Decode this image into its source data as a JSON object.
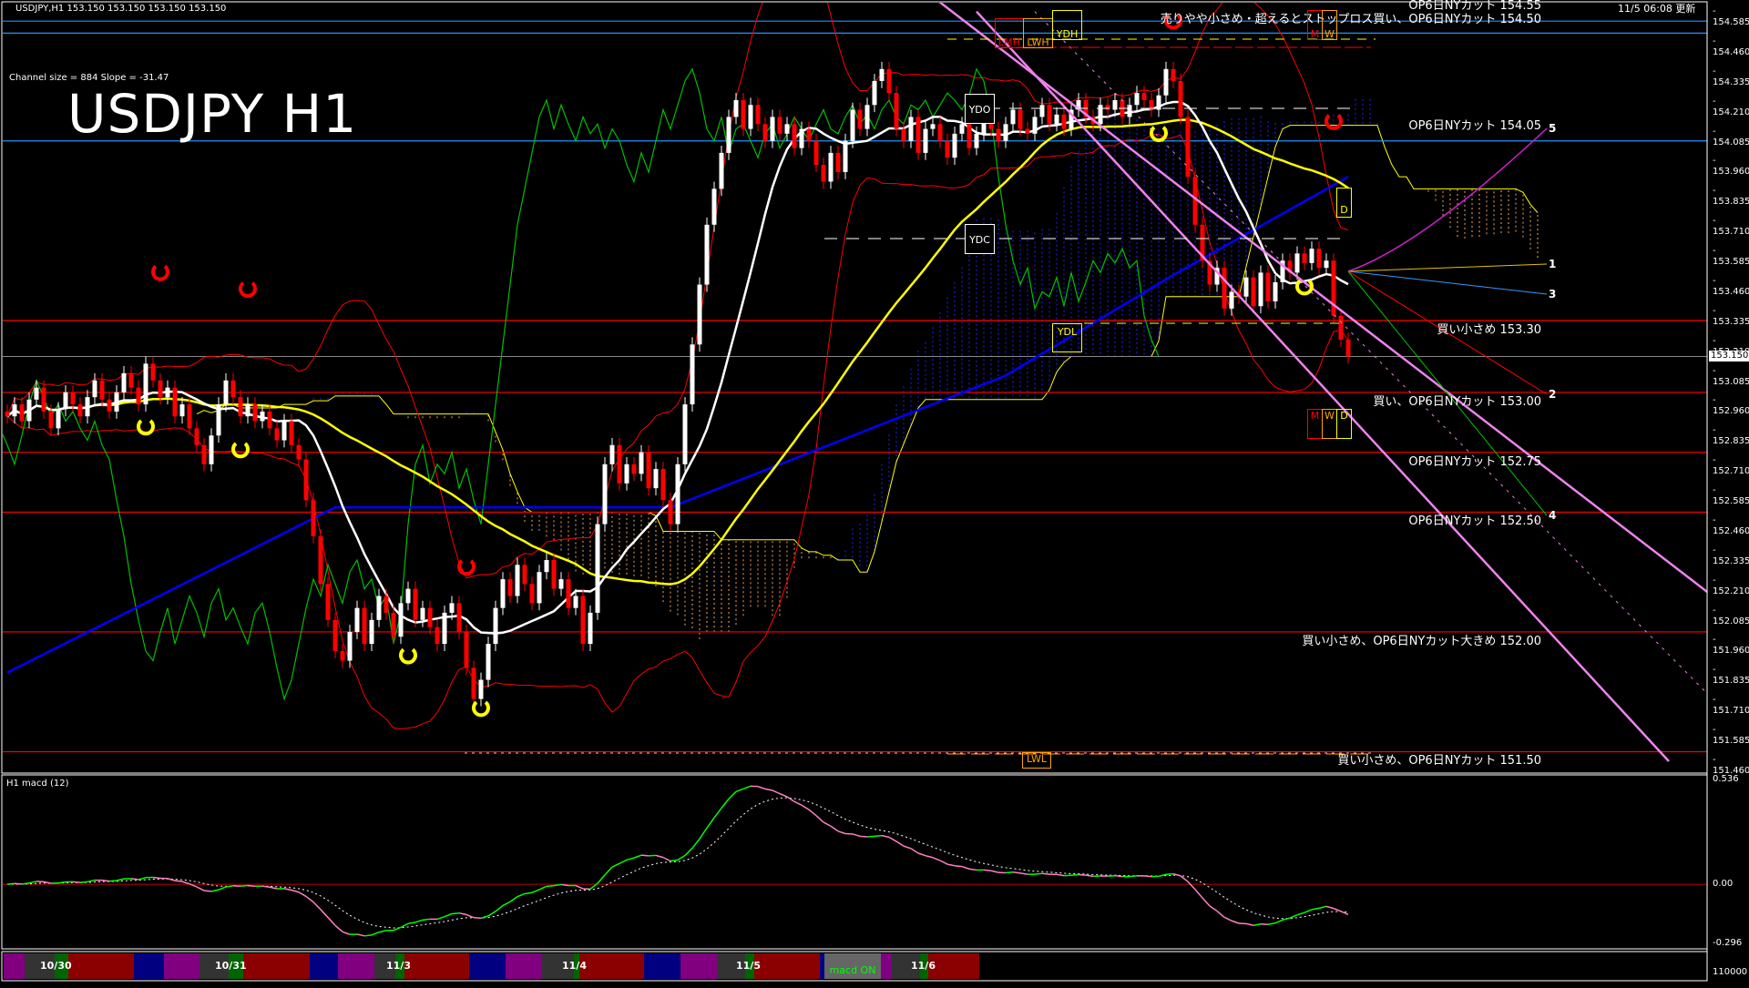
{
  "header": {
    "symbol_line": "USDJPY,H1  153.150 153.150 153.150 153.150",
    "updated": "11/5 06:08 更新",
    "channel_info": "Channel size = 884 Slope = -31.47",
    "title": "USDJPY H1"
  },
  "chart_data": {
    "type": "candlestick",
    "symbol": "USDJPY",
    "timeframe": "H1",
    "ylim": [
      151.46,
      154.585
    ],
    "y_ticks": [
      "154.585",
      "154.460",
      "154.335",
      "154.210",
      "154.085",
      "153.960",
      "153.835",
      "153.710",
      "153.585",
      "153.460",
      "153.335",
      "153.210",
      "153.085",
      "152.960",
      "152.835",
      "152.710",
      "152.585",
      "152.460",
      "152.335",
      "152.210",
      "152.085",
      "151.960",
      "151.835",
      "151.710",
      "151.585",
      "151.460"
    ],
    "current_price": "153.150",
    "current_price_value": 153.15,
    "closes": [
      152.9,
      152.95,
      152.88,
      152.97,
      153.02,
      152.92,
      152.85,
      152.93,
      153.0,
      152.95,
      152.9,
      152.98,
      153.05,
      152.97,
      152.92,
      153.0,
      153.08,
      153.02,
      152.95,
      153.12,
      153.05,
      152.98,
      153.02,
      152.9,
      152.95,
      152.85,
      152.78,
      152.7,
      152.82,
      152.95,
      153.05,
      152.98,
      152.9,
      152.95,
      152.88,
      152.92,
      152.85,
      152.8,
      152.88,
      152.78,
      152.72,
      152.55,
      152.4,
      152.2,
      152.05,
      151.92,
      151.88,
      152.0,
      152.1,
      151.95,
      152.05,
      152.15,
      152.08,
      151.98,
      152.12,
      152.18,
      152.05,
      152.1,
      152.02,
      151.95,
      152.08,
      152.12,
      152.0,
      151.85,
      151.72,
      151.8,
      151.95,
      152.1,
      152.22,
      152.15,
      152.28,
      152.2,
      152.12,
      152.25,
      152.3,
      152.18,
      152.22,
      152.1,
      152.15,
      151.95,
      152.08,
      152.45,
      152.7,
      152.78,
      152.62,
      152.7,
      152.66,
      152.75,
      152.6,
      152.68,
      152.55,
      152.45,
      152.7,
      152.95,
      153.2,
      153.45,
      153.7,
      153.85,
      154.0,
      154.15,
      154.22,
      154.1,
      154.2,
      154.12,
      154.05,
      154.15,
      154.08,
      154.12,
      154.02,
      154.1,
      154.05,
      153.95,
      153.88,
      154.0,
      153.92,
      154.05,
      154.18,
      154.1,
      154.2,
      154.3,
      154.35,
      154.25,
      154.1,
      154.05,
      154.15,
      154.0,
      154.1,
      154.12,
      154.05,
      153.98,
      154.08,
      154.12,
      154.02,
      154.08,
      154.15,
      154.1,
      154.05,
      154.12,
      154.18,
      154.1,
      154.08,
      154.15,
      154.2,
      154.12,
      154.16,
      154.1,
      154.18,
      154.22,
      154.15,
      154.12,
      154.2,
      154.18,
      154.22,
      154.15,
      154.2,
      154.25,
      154.22,
      154.18,
      154.24,
      154.35,
      154.3,
      154.15,
      153.9,
      153.7,
      153.55,
      153.45,
      153.52,
      153.35,
      153.42,
      153.4,
      153.48,
      153.36,
      153.5,
      153.38,
      153.46,
      153.55,
      153.5,
      153.58,
      153.54,
      153.6,
      153.52,
      153.55,
      153.32,
      153.22,
      153.15
    ],
    "ma_slow": [
      [
        0,
        151.83
      ],
      [
        45,
        152.52
      ],
      [
        91,
        152.52
      ],
      [
        137,
        153.07
      ],
      [
        160,
        153.49
      ],
      [
        184,
        153.9
      ]
    ],
    "levels": [
      {
        "price": 154.55,
        "color": "#1e90ff",
        "label": "OP6日NYカット 154.55"
      },
      {
        "price": 154.5,
        "color": "#1e90ff",
        "label": "売りやや小さめ・超えるとストップロス買い、OP6日NYカット 154.50"
      },
      {
        "price": 154.05,
        "color": "#1e90ff",
        "label": "OP6日NYカット 154.05"
      },
      {
        "price": 153.3,
        "color": "#ff0000",
        "label": "買い小さめ 153.30"
      },
      {
        "price": 153.0,
        "color": "#ff0000",
        "label": "買い、OP6日NYカット 153.00"
      },
      {
        "price": 152.75,
        "color": "#ff0000",
        "label": "OP6日NYカット 152.75"
      },
      {
        "price": 152.5,
        "color": "#ff0000",
        "label": "OP6日NYカット 152.50"
      },
      {
        "price": 152.0,
        "color": "#ff0000",
        "label": "買い小さめ、OP6日NYカット大きめ 152.00"
      },
      {
        "price": 151.5,
        "color": "#ff0000",
        "label": "買い小さめ、OP6日NYカット 151.50"
      }
    ],
    "channel": [
      {
        "from": [
          127.5,
          154.64
        ],
        "to": [
          234,
          152.15
        ],
        "style": "solid"
      },
      {
        "from": [
          133,
          154.59
        ],
        "to": [
          228,
          151.46
        ],
        "style": "solid"
      },
      {
        "from": [
          141,
          154.59
        ],
        "to": [
          234,
          151.72
        ],
        "style": "dotted"
      }
    ],
    "channel_color": "#ee82ee",
    "markers": [
      {
        "bar": 21,
        "price": 153.5,
        "color": "#ff0000"
      },
      {
        "bar": 33,
        "price": 153.43,
        "color": "#ff0000"
      },
      {
        "bar": 63,
        "price": 152.27,
        "color": "#ff0000"
      },
      {
        "bar": 182,
        "price": 154.13,
        "color": "#ff0000"
      },
      {
        "bar": 160,
        "price": 154.55,
        "color": "#ff0000"
      },
      {
        "bar": 19,
        "price": 152.855,
        "color": "#ffff00"
      },
      {
        "bar": 32,
        "price": 152.76,
        "color": "#ffff00"
      },
      {
        "bar": 55,
        "price": 151.9,
        "color": "#ffff00"
      },
      {
        "bar": 65,
        "price": 151.68,
        "color": "#ffff00"
      },
      {
        "bar": 158,
        "price": 154.08,
        "color": "#ffff00"
      },
      {
        "bar": 178,
        "price": 153.44,
        "color": "#ffff00"
      }
    ],
    "boxes": {
      "lmh": "LMH",
      "lwh": "LWH",
      "ydh": "YDH",
      "ydo": "YDO",
      "ydc": "YDC",
      "ydl": "YDL",
      "lwl": "LWL",
      "m": "M",
      "w": "W",
      "d": "D"
    },
    "projections": [
      "1",
      "2",
      "3",
      "4",
      "5"
    ],
    "colors": {
      "bull": "#ffffff",
      "bear": "#ff0000",
      "ma_fast": "#ffffff",
      "ma_mid": "#ffff00",
      "ma_slow": "#0000ff",
      "bands": "#ff0000",
      "chikou": "#00c000",
      "cloud_up": "#2020ff",
      "cloud_down": "#f4a460"
    },
    "macd": {
      "title": "H1  macd (12)",
      "ylim": [
        -0.296,
        0.536
      ],
      "ticks": [
        "0.536",
        "0.00",
        "-0.296"
      ],
      "bottom_label": "110000",
      "rising_color": "#00ff00",
      "falling_color": "#ff80c0"
    },
    "dates": [
      "10/30",
      "10/31",
      "11/3",
      "11/4",
      "11/5",
      "11/6"
    ],
    "macd_button": "macd ON"
  }
}
